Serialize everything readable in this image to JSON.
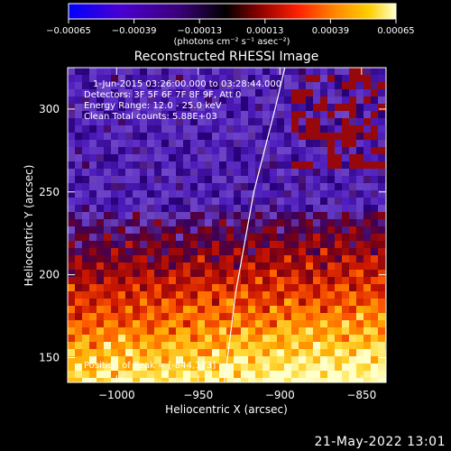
{
  "chart_data": {
    "type": "heatmap",
    "title": "Reconstructed RHESSI Image",
    "xlabel": "Heliocentric X (arcsec)",
    "ylabel": "Heliocentric Y (arcsec)",
    "xlim": [
      -1030,
      -835
    ],
    "ylim": [
      135,
      325
    ],
    "x_ticks": [
      -1000,
      -950,
      -900,
      -850
    ],
    "x_tick_labels": [
      "−1000",
      "−950",
      "−900",
      "−850"
    ],
    "y_ticks": [
      150,
      200,
      250,
      300
    ],
    "y_tick_labels": [
      "150",
      "200",
      "250",
      "300"
    ],
    "colorbar": {
      "range": [
        -0.00065,
        0.00065
      ],
      "ticks": [
        -0.00065,
        -0.00039,
        -0.00013,
        0.00013,
        0.00039,
        0.00065
      ],
      "tick_labels": [
        "−0.00065",
        "−0.00039",
        "−0.00013",
        "0.00013",
        "0.00039",
        "0.00065"
      ],
      "units": "(photons cm⁻² s⁻¹ asec⁻²)",
      "colors": [
        "#0000ff",
        "#5a00c8",
        "#3c0080",
        "#000000",
        "#8b0000",
        "#ff2000",
        "#ff8c00",
        "#ffd700",
        "#ffffcc"
      ]
    },
    "info_lines": [
      "1-Jun-2015 03:26:00.000 to 03:28:44.000",
      "Detectors: 3F 5F 6F 7F 8F 9F, Att 0",
      "Energy Range: 12.0 - 25.0 keV",
      "Clean     Total counts: 5.88E+03"
    ],
    "peak_label": "Position of Peak = [-844,173]",
    "peak_position": [
      -844,
      173
    ],
    "limb_line": [
      [
        -934,
        135
      ],
      [
        -927,
        190
      ],
      [
        -916,
        250
      ],
      [
        -903,
        300
      ],
      [
        -897,
        325
      ]
    ],
    "image_description_grid": {
      "rows_from_top": [
        "violet diffuse emission with dark red blobs near top-right",
        "mostly purple / blue-purple background",
        "transition to orange and red",
        "bright yellow-orange patchy sources",
        "brightest yellow toward bottom-right"
      ]
    }
  },
  "footer": {
    "timestamp": "21-May-2022 13:01"
  }
}
